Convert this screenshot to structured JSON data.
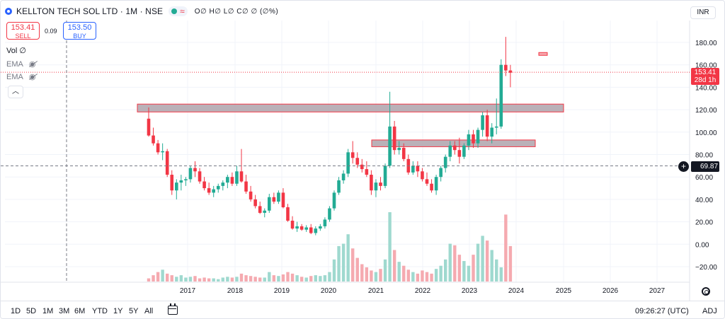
{
  "header": {
    "symbol": "KELLTON TECH SOL LTD · 1M · NSE",
    "ohlc": "O∅ H∅ L∅ C∅ ∅ (∅%)",
    "currency": "INR"
  },
  "trade": {
    "sell_price": "153.41",
    "sell_label": "SELL",
    "spread": "0.09",
    "buy_price": "153.50",
    "buy_label": "BUY"
  },
  "indicators": {
    "vol_label": "Vol",
    "vol_value": "∅",
    "ema1": "EMA",
    "ema2": "EMA",
    "collapse_icon": "chevron-up-icon"
  },
  "price_axis": {
    "ticks": [
      "180.00",
      "160.00",
      "140.00",
      "120.00",
      "100.00",
      "80.00",
      "60.00",
      "40.00",
      "20.00",
      "0.00",
      "−20.00"
    ],
    "last_price": "153.41",
    "countdown": "28d 1h",
    "crosshair_price": "69.87"
  },
  "time_axis": {
    "years": [
      "2017",
      "2018",
      "2019",
      "2020",
      "2021",
      "2022",
      "2023",
      "2024",
      "2025",
      "2026",
      "2027"
    ]
  },
  "ranges": [
    "1D",
    "5D",
    "1M",
    "3M",
    "6M",
    "YTD",
    "1Y",
    "5Y",
    "All"
  ],
  "clock": "09:26:27 (UTC)",
  "adj": "ADJ",
  "colors": {
    "up": "#22ab94",
    "down": "#f23645",
    "zone": "#b2a8b0",
    "accent": "#2962ff"
  },
  "chart_data": {
    "type": "candlestick",
    "ylim": [
      -20,
      180
    ],
    "candles": [
      [
        112,
        122,
        96,
        97
      ],
      [
        97,
        104,
        88,
        90
      ],
      [
        90,
        93,
        80,
        82
      ],
      [
        82,
        90,
        75,
        83
      ],
      [
        83,
        85,
        60,
        62
      ],
      [
        62,
        66,
        44,
        48
      ],
      [
        48,
        58,
        40,
        55
      ],
      [
        55,
        62,
        48,
        57
      ],
      [
        57,
        60,
        52,
        58
      ],
      [
        58,
        70,
        55,
        68
      ],
      [
        68,
        74,
        60,
        65
      ],
      [
        65,
        68,
        54,
        56
      ],
      [
        56,
        60,
        48,
        50
      ],
      [
        50,
        55,
        44,
        46
      ],
      [
        46,
        52,
        42,
        49
      ],
      [
        49,
        54,
        46,
        52
      ],
      [
        52,
        57,
        48,
        55
      ],
      [
        55,
        62,
        50,
        60
      ],
      [
        60,
        64,
        52,
        54
      ],
      [
        54,
        70,
        52,
        65
      ],
      [
        65,
        85,
        55,
        56
      ],
      [
        56,
        62,
        45,
        47
      ],
      [
        47,
        52,
        38,
        40
      ],
      [
        40,
        44,
        32,
        34
      ],
      [
        34,
        38,
        27,
        28
      ],
      [
        28,
        32,
        24,
        30
      ],
      [
        30,
        45,
        28,
        42
      ],
      [
        42,
        46,
        36,
        38
      ],
      [
        38,
        48,
        36,
        46
      ],
      [
        46,
        50,
        32,
        33
      ],
      [
        33,
        36,
        20,
        21
      ],
      [
        21,
        25,
        13,
        14
      ],
      [
        14,
        20,
        11,
        16
      ],
      [
        16,
        18,
        12,
        13
      ],
      [
        13,
        17,
        11,
        15
      ],
      [
        15,
        18,
        9,
        10
      ],
      [
        10,
        16,
        8,
        14
      ],
      [
        14,
        18,
        12,
        16
      ],
      [
        16,
        24,
        14,
        22
      ],
      [
        22,
        34,
        20,
        32
      ],
      [
        32,
        48,
        30,
        46
      ],
      [
        46,
        60,
        44,
        57
      ],
      [
        57,
        66,
        54,
        63
      ],
      [
        63,
        85,
        60,
        82
      ],
      [
        82,
        92,
        72,
        77
      ],
      [
        77,
        82,
        68,
        71
      ],
      [
        71,
        76,
        64,
        67
      ],
      [
        67,
        74,
        60,
        62
      ],
      [
        62,
        66,
        44,
        48
      ],
      [
        48,
        58,
        42,
        55
      ],
      [
        55,
        60,
        48,
        52
      ],
      [
        52,
        72,
        50,
        70
      ],
      [
        70,
        136,
        68,
        105
      ],
      [
        105,
        110,
        80,
        84
      ],
      [
        84,
        92,
        80,
        86
      ],
      [
        86,
        90,
        74,
        76
      ],
      [
        76,
        80,
        62,
        64
      ],
      [
        64,
        74,
        62,
        70
      ],
      [
        70,
        74,
        60,
        65
      ],
      [
        65,
        68,
        56,
        58
      ],
      [
        58,
        64,
        52,
        54
      ],
      [
        54,
        58,
        46,
        48
      ],
      [
        48,
        62,
        44,
        60
      ],
      [
        60,
        70,
        56,
        68
      ],
      [
        68,
        80,
        64,
        78
      ],
      [
        78,
        92,
        74,
        88
      ],
      [
        88,
        92,
        80,
        84
      ],
      [
        84,
        95,
        72,
        78
      ],
      [
        78,
        90,
        76,
        88
      ],
      [
        88,
        102,
        84,
        98
      ],
      [
        98,
        102,
        86,
        90
      ],
      [
        90,
        104,
        86,
        102
      ],
      [
        102,
        118,
        96,
        115
      ],
      [
        115,
        120,
        92,
        96
      ],
      [
        96,
        108,
        90,
        104
      ],
      [
        104,
        130,
        98,
        105
      ],
      [
        105,
        165,
        103,
        160
      ],
      [
        160,
        185,
        150,
        155
      ],
      [
        155,
        160,
        140,
        153
      ]
    ],
    "volume": [
      4,
      8,
      12,
      15,
      10,
      8,
      6,
      8,
      5,
      6,
      7,
      4,
      5,
      4,
      4,
      3,
      5,
      6,
      5,
      6,
      10,
      8,
      7,
      6,
      5,
      5,
      12,
      8,
      7,
      9,
      12,
      10,
      8,
      6,
      5,
      7,
      8,
      7,
      8,
      12,
      28,
      45,
      48,
      60,
      42,
      30,
      22,
      18,
      14,
      12,
      16,
      28,
      88,
      40,
      25,
      20,
      15,
      12,
      10,
      14,
      12,
      10,
      16,
      20,
      28,
      48,
      46,
      34,
      26,
      20,
      34,
      48,
      58,
      52,
      40,
      28,
      18,
      85,
      45
    ]
  }
}
